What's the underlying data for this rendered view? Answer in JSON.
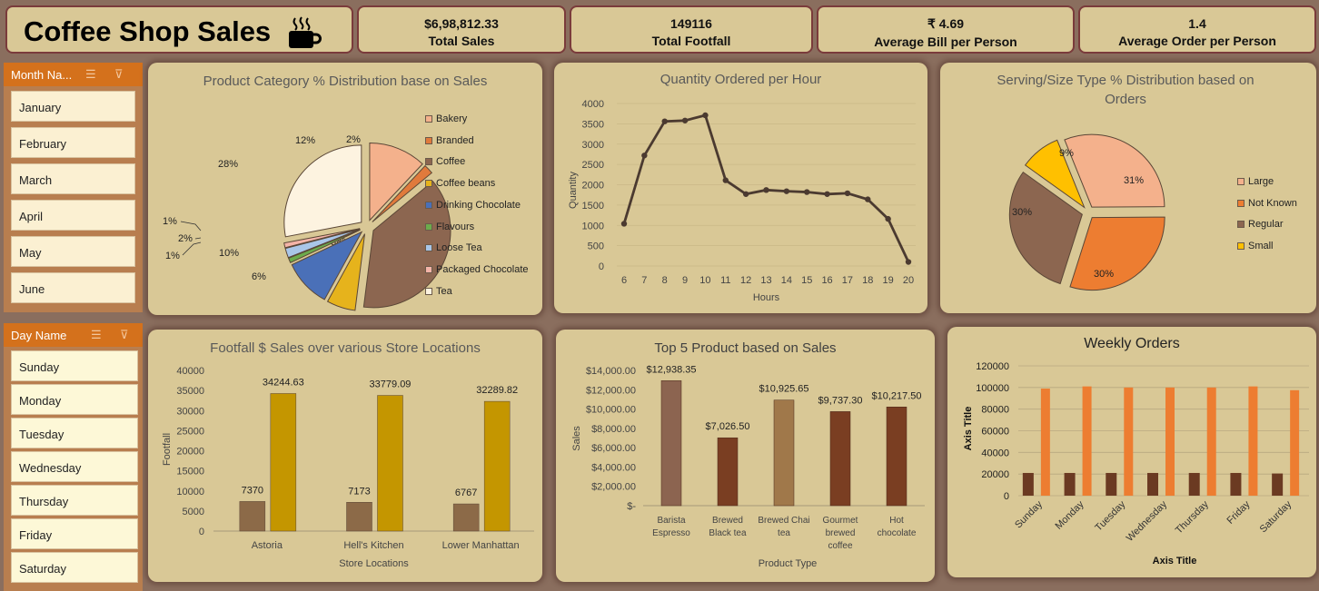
{
  "dashboard": {
    "title": "Coffee Shop Sales"
  },
  "kpis": [
    {
      "value": "$6,98,812.33",
      "label": "Total Sales"
    },
    {
      "value": "149116",
      "label": "Total Footfall"
    },
    {
      "value": "₹ 4.69",
      "label": "Average Bill per Person"
    },
    {
      "value": "1.4",
      "label": "Average Order per Person"
    }
  ],
  "month_slicer": {
    "header": "Month Na...",
    "items": [
      "January",
      "February",
      "March",
      "April",
      "May",
      "June"
    ]
  },
  "day_slicer": {
    "header": "Day Name",
    "items": [
      "Sunday",
      "Monday",
      "Tuesday",
      "Wednesday",
      "Thursday",
      "Friday",
      "Saturday"
    ]
  },
  "colors": {
    "panel": "#d9c896",
    "background": "#8a6e5e",
    "accent_orange": "#d4711c"
  },
  "chart_data": [
    {
      "type": "pie",
      "title": "Product Category % Distribution base on Sales",
      "categories": [
        "Bakery",
        "Branded",
        "Coffee",
        "Coffee beans",
        "Drinking Chocolate",
        "Flavours",
        "Loose Tea",
        "Packaged Chocolate",
        "Tea"
      ],
      "values": [
        12,
        2,
        38,
        6,
        10,
        1,
        2,
        1,
        28
      ],
      "labels": [
        "12%",
        "2%",
        "38%",
        "6%",
        "10%",
        "1%",
        "2%",
        "1%",
        "28%"
      ],
      "colors": [
        "#f4b18c",
        "#e07a3c",
        "#8c6650",
        "#e6b31c",
        "#4a70b8",
        "#6cab4c",
        "#a9c6e8",
        "#f4b4a8",
        "#fdf3e0"
      ],
      "legend": "right"
    },
    {
      "type": "line",
      "title": "Quantity Ordered per Hour",
      "x": [
        6,
        7,
        8,
        9,
        10,
        11,
        12,
        13,
        14,
        15,
        16,
        17,
        18,
        19,
        20
      ],
      "y": [
        1040,
        2720,
        3560,
        3580,
        3710,
        2110,
        1770,
        1870,
        1840,
        1820,
        1770,
        1790,
        1640,
        1160,
        100
      ],
      "xlabel": "Hours",
      "ylabel": "Quantity",
      "ylim": [
        0,
        4000
      ],
      "yticks": [
        "0",
        "500",
        "1000",
        "1500",
        "2000",
        "2500",
        "3000",
        "3500",
        "4000"
      ]
    },
    {
      "type": "pie",
      "title": "Serving/Size Type % Distribution based on Orders",
      "categories": [
        "Large",
        "Not Known",
        "Regular",
        "Small"
      ],
      "values": [
        31,
        30,
        30,
        9
      ],
      "labels": [
        "31%",
        "30%",
        "30%",
        "9%"
      ],
      "colors": [
        "#f4b18c",
        "#ed7d31",
        "#8c6650",
        "#ffc000"
      ],
      "legend": "right"
    },
    {
      "type": "bar",
      "title": "Footfall $ Sales over various Store Locations",
      "categories": [
        "Astoria",
        "Hell's Kitchen",
        "Lower Manhattan"
      ],
      "series": [
        {
          "values": [
            7370,
            7173,
            6767
          ],
          "labels": [
            "7370",
            "7173",
            "6767"
          ],
          "color": "#8c6a48"
        },
        {
          "values": [
            34244.63,
            33779.09,
            32289.82
          ],
          "labels": [
            "34244.63",
            "33779.09",
            "32289.82"
          ],
          "color": "#c49600"
        }
      ],
      "xlabel": "Store Locations",
      "ylabel": "Footfall",
      "ylim": [
        0,
        40000
      ],
      "yticks": [
        "0",
        "5000",
        "10000",
        "15000",
        "20000",
        "25000",
        "30000",
        "35000",
        "40000"
      ]
    },
    {
      "type": "bar",
      "title": "Top 5 Product based on Sales",
      "categories": [
        "Barista Espresso",
        "Brewed Black tea",
        "Brewed Chai tea",
        "Gourmet brewed coffee",
        "Hot chocolate"
      ],
      "category_lines": [
        [
          "Barista",
          "Espresso"
        ],
        [
          "Brewed",
          "Black tea"
        ],
        [
          "Brewed Chai",
          "tea"
        ],
        [
          "Gourmet",
          "brewed",
          "coffee"
        ],
        [
          "Hot",
          "chocolate"
        ]
      ],
      "values": [
        12938.35,
        7026.5,
        10925.65,
        9737.3,
        10217.5
      ],
      "labels": [
        "$12,938.35",
        "$7,026.50",
        "$10,925.65",
        "$9,737.30",
        "$10,217.50"
      ],
      "colors": [
        "#8c6450",
        "#7a3e22",
        "#a0784a",
        "#7a3e22",
        "#7a3e22"
      ],
      "xlabel": "Product Type",
      "ylabel": "Sales",
      "ylim": [
        0,
        14000
      ],
      "yticks": [
        "$-",
        "$2,000.00",
        "$4,000.00",
        "$6,000.00",
        "$8,000.00",
        "$10,000.00",
        "$12,000.00",
        "$14,000.00"
      ]
    },
    {
      "type": "bar",
      "title": "Weekly Orders",
      "categories": [
        "Sunday",
        "Monday",
        "Tuesday",
        "Wednesday",
        "Thursday",
        "Friday",
        "Saturday"
      ],
      "series": [
        {
          "values": [
            21000,
            21000,
            21000,
            21000,
            21000,
            21000,
            20500
          ],
          "color": "#6b3a22"
        },
        {
          "values": [
            99000,
            101000,
            100000,
            100000,
            100000,
            101000,
            97500
          ],
          "color": "#ed7d31"
        }
      ],
      "xlabel": "Axis Title",
      "ylabel": "Axis Title",
      "ylim": [
        0,
        120000
      ],
      "yticks": [
        "0",
        "20000",
        "40000",
        "60000",
        "80000",
        "100000",
        "120000"
      ]
    }
  ]
}
